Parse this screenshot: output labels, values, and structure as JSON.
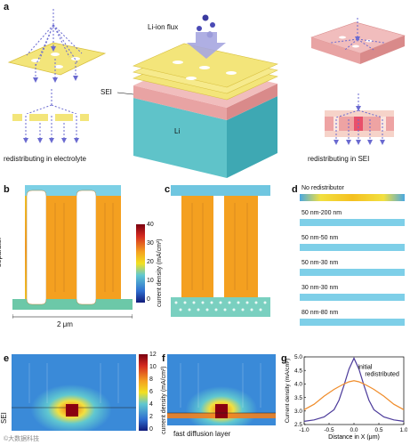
{
  "panel_a": {
    "label": "a",
    "flux_label": "Li-ion flux",
    "sei_label": "SEI",
    "li_label": "Li",
    "left_caption": "redistributing in electrolyte",
    "right_caption": "redistributing in SEI"
  },
  "panel_b": {
    "label": "b",
    "separator_label": "separator",
    "scale_label": "2 μm"
  },
  "colorbar_top": {
    "ticks": [
      "40",
      "30",
      "20",
      "10",
      "0"
    ],
    "title": "current density (mA/cm²)"
  },
  "panel_c": {
    "label": "c"
  },
  "panel_d": {
    "label": "d",
    "rows": [
      "No redistributor",
      "50 nm-200 nm",
      "50 nm-50 nm",
      "50 nm-30 nm",
      "30 nm-30 nm",
      "80 nm-80 nm"
    ]
  },
  "panel_e": {
    "label": "e",
    "sei_label": "SEI"
  },
  "colorbar_bottom": {
    "ticks": [
      "12",
      "10",
      "8",
      "6",
      "4",
      "2",
      "0"
    ],
    "title": "current density (mA/cm²)"
  },
  "panel_f": {
    "label": "f",
    "caption": "fast diffusion layer"
  },
  "panel_g": {
    "label": "g"
  },
  "watermark": "©大数据科技",
  "colors": {
    "red": "#c8102e",
    "orange": "#f4a300",
    "yellow": "#f2d400",
    "cyan": "#55c8d8",
    "blue": "#2f5fb5",
    "navy": "#1a2a7a",
    "sheet_yellow": "#f3e57a",
    "sei_pink": "#e8a3a3",
    "li_teal": "#5fc3c9",
    "arrow": "#6a6ad0"
  },
  "chart_data": {
    "type": "line",
    "title": "",
    "xlabel": "Distance in X (μm)",
    "ylabel": "Current density (mA/cm²)",
    "xlim": [
      -1.0,
      1.0
    ],
    "ylim": [
      2.5,
      5.0
    ],
    "xticks": [
      "-1.0",
      "-0.5",
      "0.0",
      "0.5",
      "1.0"
    ],
    "yticks": [
      "2.5",
      "3.0",
      "3.5",
      "4.0",
      "4.5",
      "5.0"
    ],
    "x": [
      -1.0,
      -0.8,
      -0.6,
      -0.4,
      -0.3,
      -0.2,
      -0.1,
      0.0,
      0.1,
      0.2,
      0.3,
      0.4,
      0.6,
      0.8,
      1.0
    ],
    "series": [
      {
        "name": "initial",
        "color": "#4b3a9a",
        "values": [
          2.62,
          2.67,
          2.78,
          3.05,
          3.4,
          3.95,
          4.55,
          4.95,
          4.55,
          3.95,
          3.4,
          3.05,
          2.78,
          2.67,
          2.62
        ]
      },
      {
        "name": "redistributed",
        "color": "#f08c2a",
        "values": [
          3.05,
          3.25,
          3.55,
          3.8,
          3.9,
          4.0,
          4.08,
          4.12,
          4.08,
          4.0,
          3.9,
          3.8,
          3.55,
          3.25,
          3.05
        ]
      }
    ]
  }
}
